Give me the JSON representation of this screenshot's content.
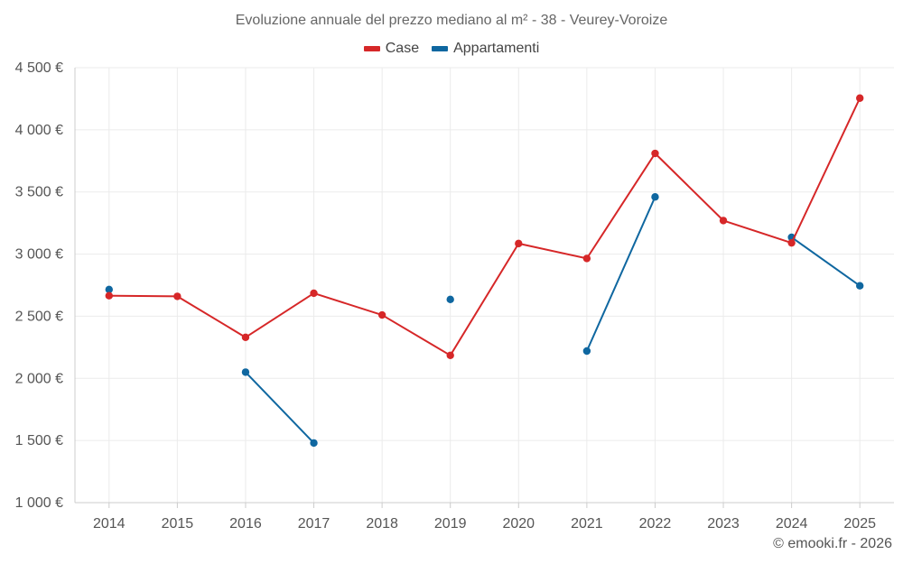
{
  "chart_data": {
    "type": "line",
    "title": "Evoluzione annuale del prezzo mediano al m² - 38 - Veurey-Voroize",
    "xlabel": "",
    "ylabel": "",
    "categories": [
      "2014",
      "2015",
      "2016",
      "2017",
      "2018",
      "2019",
      "2020",
      "2021",
      "2022",
      "2023",
      "2024",
      "2025"
    ],
    "ylim": [
      1000,
      4500
    ],
    "yticks": [
      1000,
      1500,
      2000,
      2500,
      3000,
      3500,
      4000,
      4500
    ],
    "ytick_labels": [
      "1 000 €",
      "1 500 €",
      "2 000 €",
      "2 500 €",
      "3 000 €",
      "3 500 €",
      "4 000 €",
      "4 500 €"
    ],
    "grid": true,
    "legend_position": "top-center",
    "series": [
      {
        "name": "Case",
        "color": "#d62728",
        "values": [
          2665,
          2660,
          2330,
          2685,
          2510,
          2185,
          3085,
          2965,
          3810,
          3270,
          3090,
          4255
        ]
      },
      {
        "name": "Appartamenti",
        "color": "#0f67a0",
        "values": [
          2715,
          null,
          2050,
          1480,
          null,
          2635,
          null,
          2220,
          3460,
          null,
          3135,
          2745
        ]
      }
    ]
  },
  "footer": {
    "copyright": "© emooki.fr - 2026"
  }
}
